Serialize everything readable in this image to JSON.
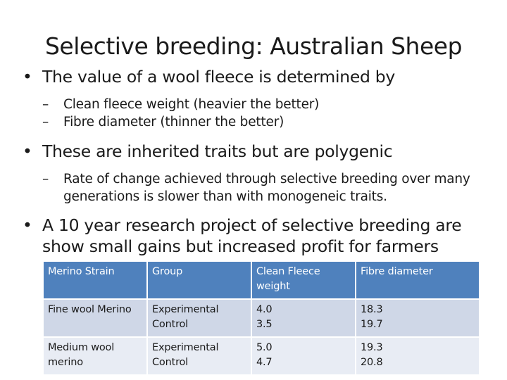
{
  "title": "Selective breeding: Australian Sheep",
  "bullets": [
    {
      "text": "The value of a wool fleece is determined by",
      "sub": [
        "Clean fleece weight (heavier the better)",
        "Fibre diameter (thinner the better)"
      ]
    },
    {
      "text": "These are inherited traits but are polygenic",
      "sub": [
        "Rate of change achieved through selective breeding over many generations is slower than with monogeneic traits."
      ]
    },
    {
      "text": "A 10 year research project of selective breeding are show small gains but increased profit for farmers",
      "sub": []
    }
  ],
  "table": {
    "headers": [
      "Merino Strain",
      "Group",
      "Clean Fleece weight",
      "Fibre diameter"
    ],
    "rows": [
      {
        "strain": "Fine wool Merino",
        "groups": [
          "Experimental",
          "Control"
        ],
        "clean_fleece_weight": [
          "4.0",
          "3.5"
        ],
        "fibre_diameter": [
          "18.3",
          "19.7"
        ]
      },
      {
        "strain": "Medium wool merino",
        "groups": [
          "Experimental",
          "Control"
        ],
        "clean_fleece_weight": [
          "5.0",
          "4.7"
        ],
        "fibre_diameter": [
          "19.3",
          "20.8"
        ]
      }
    ]
  },
  "colors": {
    "table_header": "#4f81bd",
    "table_row_odd": "#cfd7e7",
    "table_row_even": "#e8ecf4"
  }
}
